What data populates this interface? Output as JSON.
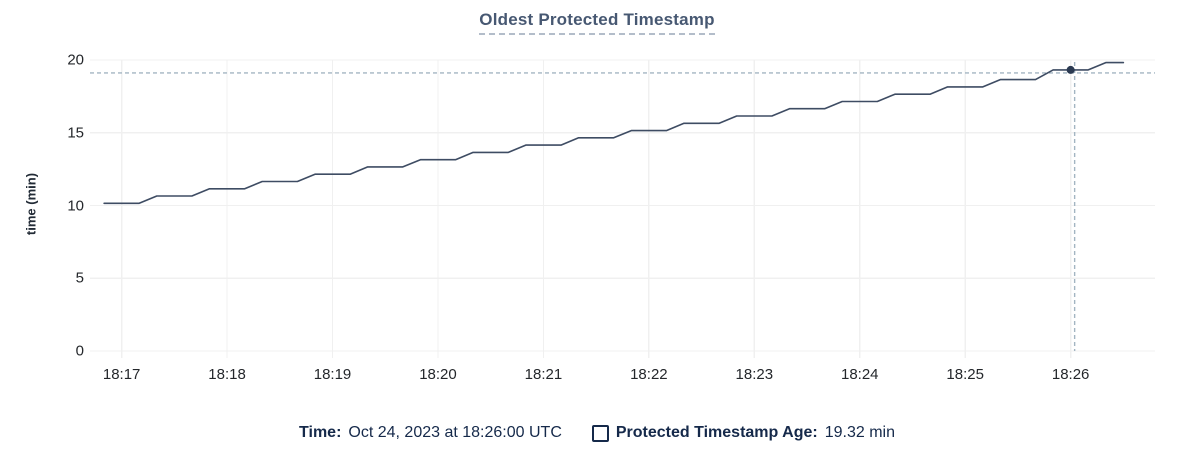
{
  "header": {
    "title": "Oldest Protected Timestamp"
  },
  "colors": {
    "title": "#475872",
    "title_underline": "#b3bdca",
    "grid": "#f0f0f0",
    "axis_text": "#24272b",
    "line": "#3e4c63",
    "hover_dot": "#2b3a52",
    "crosshair": "#a3b5c2",
    "footer_text": "#15294a"
  },
  "chart_data": {
    "type": "line",
    "title": "Oldest Protected Timestamp",
    "xlabel": "",
    "ylabel": "time (min)",
    "ylim": [
      0,
      20
    ],
    "y_ticks": [
      0,
      5,
      10,
      15,
      20
    ],
    "x_ticks": [
      "18:17",
      "18:18",
      "18:19",
      "18:20",
      "18:21",
      "18:22",
      "18:23",
      "18:24",
      "18:25",
      "18:26"
    ],
    "x_domain": [
      "18:16:42",
      "18:26:48"
    ],
    "grid": true,
    "legend_position": "bottom",
    "series": [
      {
        "name": "Protected Timestamp Age",
        "points": [
          [
            "18:16:50",
            10.15
          ],
          [
            "18:17:10",
            10.15
          ],
          [
            "18:17:20",
            10.65
          ],
          [
            "18:17:40",
            10.65
          ],
          [
            "18:17:50",
            11.15
          ],
          [
            "18:18:10",
            11.15
          ],
          [
            "18:18:20",
            11.65
          ],
          [
            "18:18:40",
            11.65
          ],
          [
            "18:18:50",
            12.15
          ],
          [
            "18:19:10",
            12.15
          ],
          [
            "18:19:20",
            12.65
          ],
          [
            "18:19:40",
            12.65
          ],
          [
            "18:19:50",
            13.15
          ],
          [
            "18:20:10",
            13.15
          ],
          [
            "18:20:20",
            13.65
          ],
          [
            "18:20:40",
            13.65
          ],
          [
            "18:20:50",
            14.15
          ],
          [
            "18:21:10",
            14.15
          ],
          [
            "18:21:20",
            14.65
          ],
          [
            "18:21:40",
            14.65
          ],
          [
            "18:21:50",
            15.15
          ],
          [
            "18:22:10",
            15.15
          ],
          [
            "18:22:20",
            15.65
          ],
          [
            "18:22:40",
            15.65
          ],
          [
            "18:22:50",
            16.15
          ],
          [
            "18:23:10",
            16.15
          ],
          [
            "18:23:20",
            16.65
          ],
          [
            "18:23:40",
            16.65
          ],
          [
            "18:23:50",
            17.15
          ],
          [
            "18:24:10",
            17.15
          ],
          [
            "18:24:20",
            17.65
          ],
          [
            "18:24:40",
            17.65
          ],
          [
            "18:24:50",
            18.15
          ],
          [
            "18:25:10",
            18.15
          ],
          [
            "18:25:20",
            18.65
          ],
          [
            "18:25:40",
            18.65
          ],
          [
            "18:25:50",
            19.32
          ],
          [
            "18:26:10",
            19.32
          ],
          [
            "18:26:20",
            19.82
          ],
          [
            "18:26:30",
            19.82
          ]
        ]
      }
    ],
    "hover_point": {
      "time": "18:26:00",
      "value": 19.32
    }
  },
  "footer": {
    "time_label": "Time:",
    "time_value": "Oct 24, 2023 at 18:26:00 UTC",
    "series_label": "Protected Timestamp Age:",
    "series_value": "19.32 min"
  }
}
